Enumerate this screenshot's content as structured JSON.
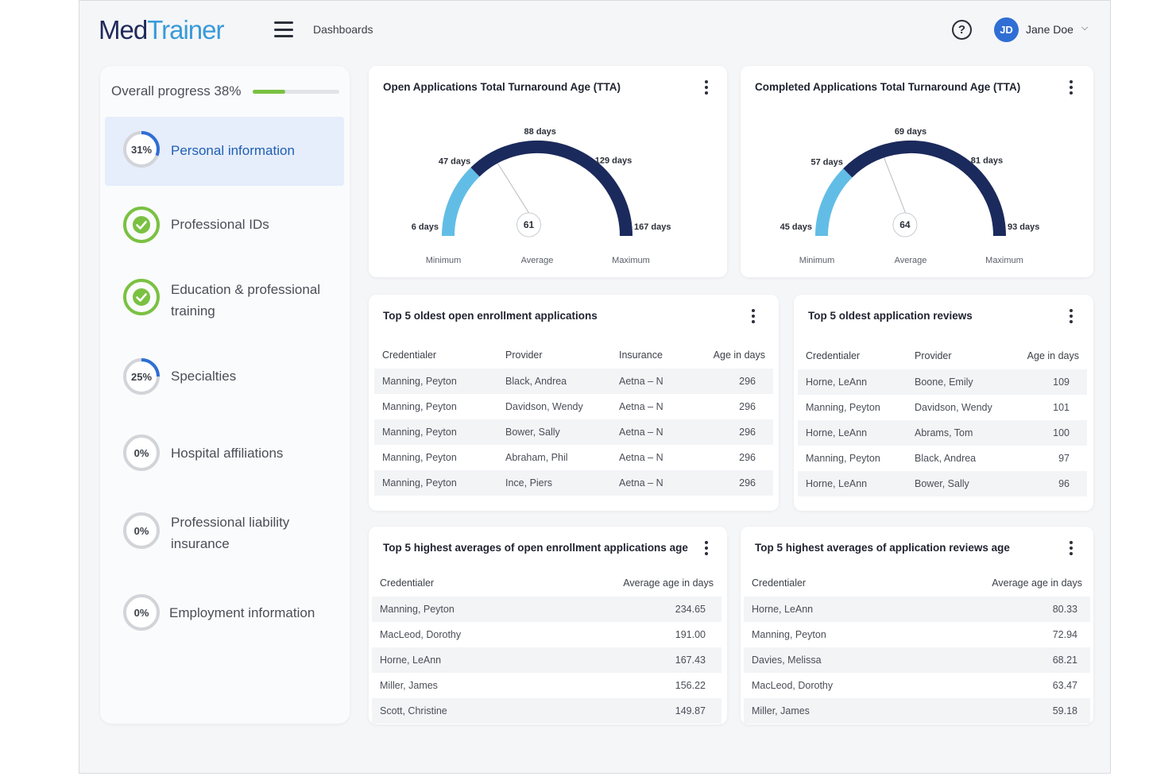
{
  "header": {
    "logo_part1": "Med",
    "logo_part2": "Trainer",
    "breadcrumb": "Dashboards",
    "help_symbol": "?",
    "user_initials": "JD",
    "user_name": "Jane Doe",
    "avatar_color": "#2f6ed4"
  },
  "sidebar": {
    "progress_label": "Overall progress 38%",
    "progress_fraction": 0.38,
    "items": [
      {
        "label": "Personal information",
        "status": "31%",
        "fraction": 0.31,
        "complete": false,
        "active": true
      },
      {
        "label": "Professional IDs",
        "status": "",
        "fraction": 1,
        "complete": true,
        "active": false
      },
      {
        "label": "Education & professional training",
        "status": "",
        "fraction": 1,
        "complete": true,
        "active": false
      },
      {
        "label": "Specialties",
        "status": "25%",
        "fraction": 0.25,
        "complete": false,
        "active": false
      },
      {
        "label": "Hospital affiliations",
        "status": "0%",
        "fraction": 0,
        "complete": false,
        "active": false
      },
      {
        "label": "Professional liability insurance",
        "status": "0%",
        "fraction": 0,
        "complete": false,
        "active": false
      },
      {
        "label": "Employment information",
        "status": "0%",
        "fraction": 0,
        "complete": false,
        "active": false
      }
    ]
  },
  "gauges": [
    {
      "title": "Open Applications  Total Turnaround Age (TTA)",
      "min": 6,
      "max": 167,
      "avg": 61,
      "split": 47,
      "peak": 88,
      "labels": {
        "min": "6 days",
        "max": "167 days",
        "split": "47 days",
        "peak": "88 days",
        "upper": "129 days",
        "avg": "61"
      },
      "captions": {
        "min": "Minimum",
        "avg": "Average",
        "max": "Maximum"
      }
    },
    {
      "title": "Completed Applications  Total Turnaround Age (TTA)",
      "min": 45,
      "max": 93,
      "avg": 64,
      "split": 57,
      "peak": 69,
      "labels": {
        "min": "45 days",
        "max": "93 days",
        "split": "57 days",
        "peak": "69 days",
        "upper": "81 days",
        "avg": "64"
      },
      "captions": {
        "min": "Minimum",
        "avg": "Average",
        "max": "Maximum"
      }
    }
  ],
  "gauge_colors": {
    "light": "#62bde6",
    "dark": "#1b2a5c"
  },
  "tables": {
    "oldest_open": {
      "title": "Top 5 oldest open enrollment applications",
      "headers": [
        "Credentialer",
        "Provider",
        "Insurance",
        "Age in days"
      ],
      "rows": [
        [
          "Manning, Peyton",
          "Black, Andrea",
          "Aetna – N",
          "296"
        ],
        [
          "Manning, Peyton",
          "Davidson, Wendy",
          "Aetna – N",
          "296"
        ],
        [
          "Manning, Peyton",
          "Bower, Sally",
          "Aetna – N",
          "296"
        ],
        [
          "Manning, Peyton",
          "Abraham, Phil",
          "Aetna – N",
          "296"
        ],
        [
          "Manning, Peyton",
          "Ince, Piers",
          "Aetna – N",
          "296"
        ]
      ]
    },
    "oldest_reviews": {
      "title": "Top 5 oldest application reviews",
      "headers": [
        "Credentialer",
        "Provider",
        "Age in days"
      ],
      "rows": [
        [
          "Horne, LeAnn",
          "Boone, Emily",
          "109"
        ],
        [
          "Manning, Peyton",
          "Davidson, Wendy",
          "101"
        ],
        [
          "Horne, LeAnn",
          "Abrams, Tom",
          "100"
        ],
        [
          "Manning, Peyton",
          "Black, Andrea",
          "97"
        ],
        [
          "Horne, LeAnn",
          "Bower, Sally",
          "96"
        ]
      ]
    },
    "avg_open": {
      "title": "Top 5 highest averages of open enrollment applications age",
      "headers": [
        "Credentialer",
        "Average age in days"
      ],
      "rows": [
        [
          "Manning, Peyton",
          "234.65"
        ],
        [
          "MacLeod, Dorothy",
          "191.00"
        ],
        [
          "Horne, LeAnn",
          "167.43"
        ],
        [
          "Miller, James",
          "156.22"
        ],
        [
          "Scott, Christine",
          "149.87"
        ]
      ]
    },
    "avg_reviews": {
      "title": "Top 5 highest averages of application reviews age",
      "headers": [
        "Credentialer",
        "Average age in days"
      ],
      "rows": [
        [
          "Horne, LeAnn",
          "80.33"
        ],
        [
          "Manning, Peyton",
          "72.94"
        ],
        [
          "Davies, Melissa",
          "68.21"
        ],
        [
          "MacLeod, Dorothy",
          "63.47"
        ],
        [
          "Miller, James",
          "59.18"
        ]
      ]
    }
  }
}
